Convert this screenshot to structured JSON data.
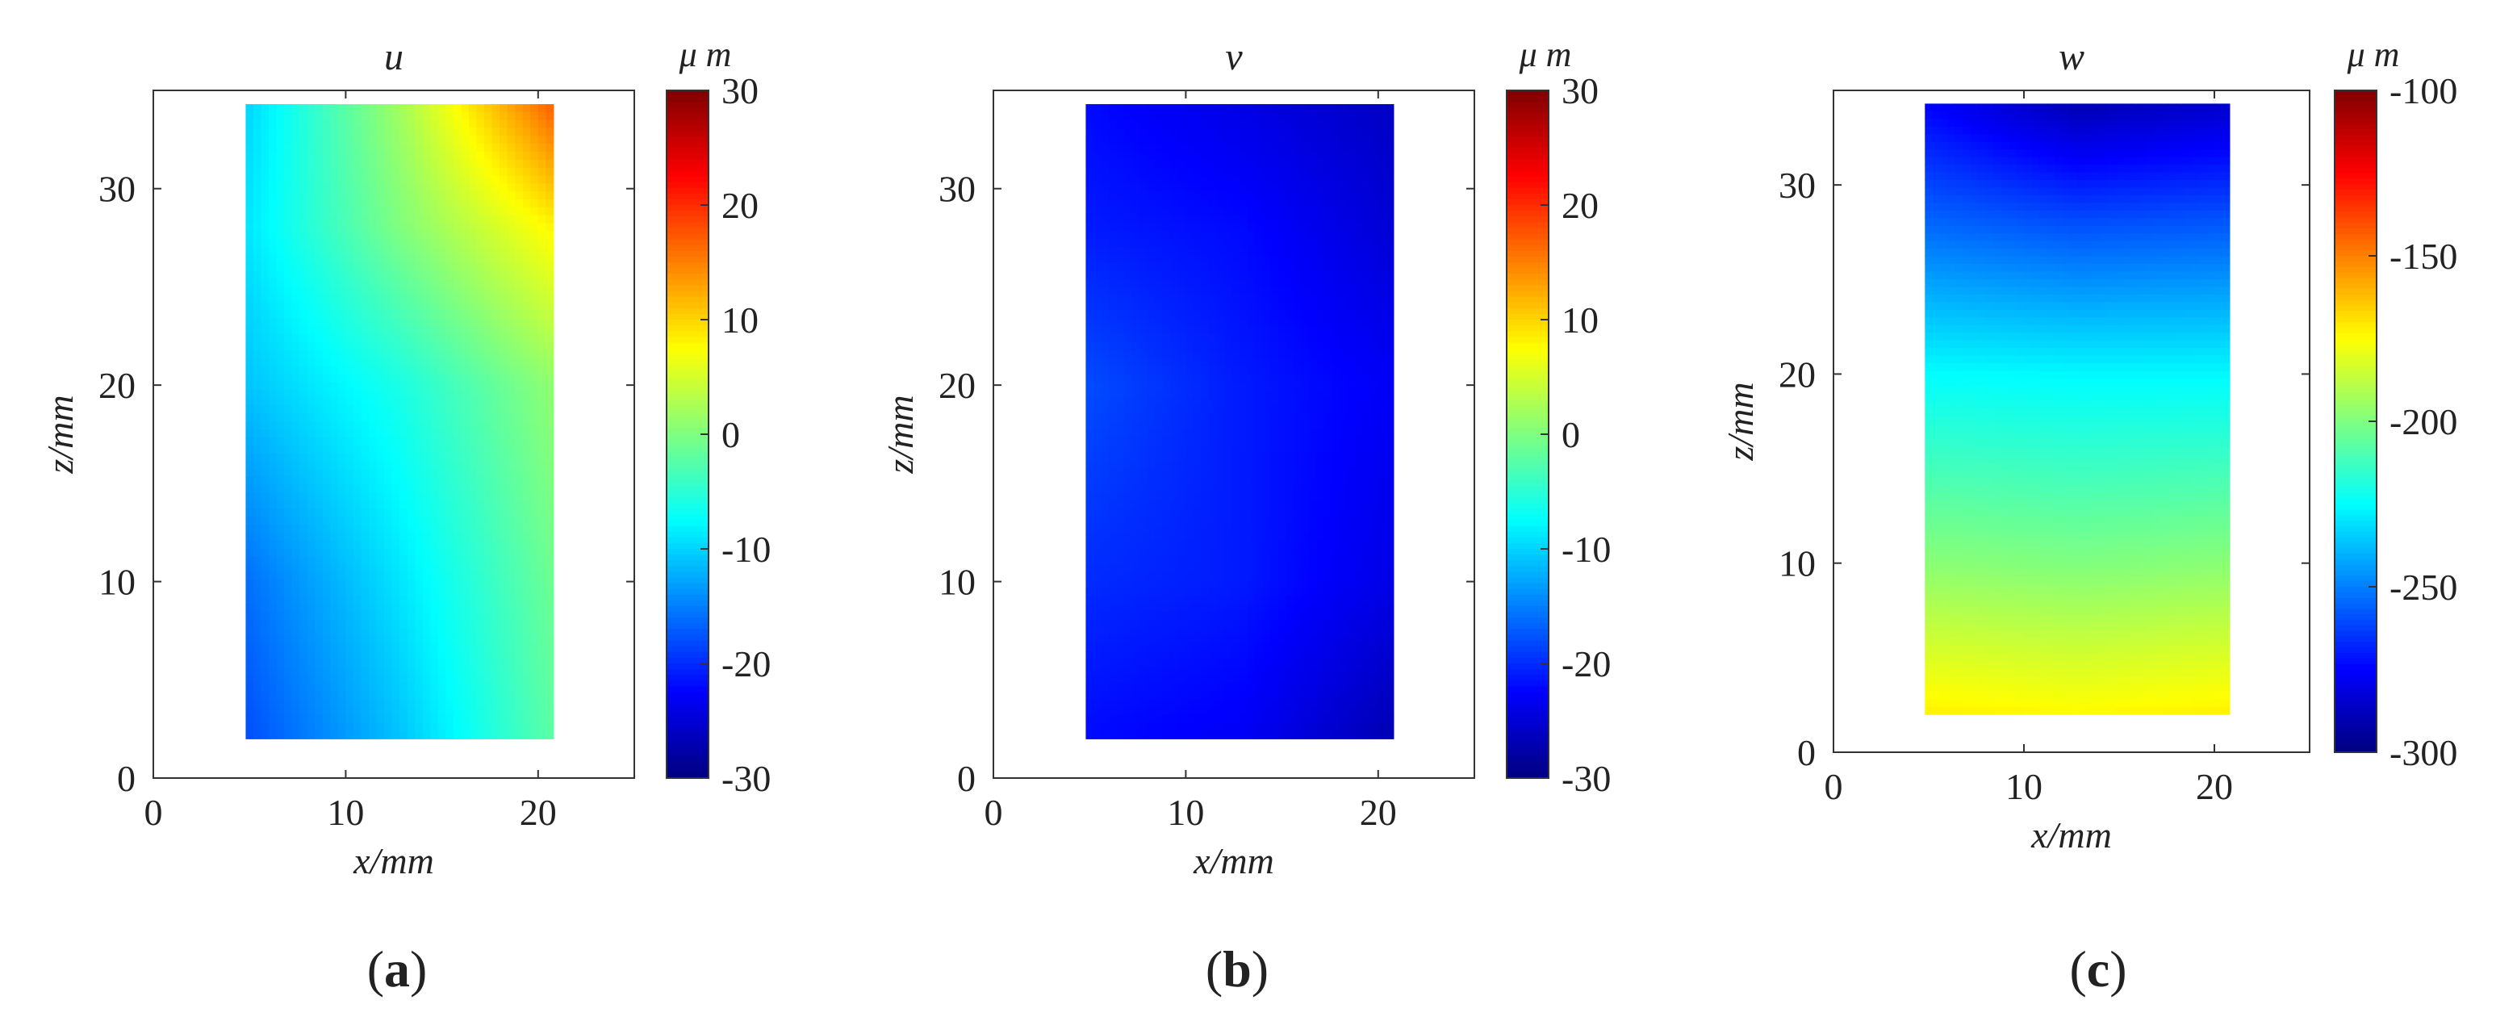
{
  "chart_data": [
    {
      "type": "heatmap",
      "panel_label": "a",
      "title": "u",
      "xlabel": "x/mm",
      "ylabel": "z/mm",
      "xlim": [
        0,
        25
      ],
      "ylim": [
        0,
        35
      ],
      "xticks": [
        0,
        10,
        20
      ],
      "yticks": [
        0,
        10,
        20,
        30
      ],
      "data_extent": {
        "x": [
          4.8,
          20.8
        ],
        "z": [
          2,
          34.3
        ]
      },
      "colorbar": {
        "unit": "μ m",
        "range": [
          -30,
          30
        ],
        "ticks": [
          30,
          20,
          10,
          0,
          -10,
          -20,
          -30
        ],
        "colormap": "jet"
      },
      "x_samples": [
        4.8,
        12.8,
        20.8
      ],
      "z_samples": [
        34.3,
        28,
        20,
        10,
        2
      ],
      "values": [
        [
          -10,
          2,
          17
        ],
        [
          -9,
          0,
          8
        ],
        [
          -11,
          -6,
          1
        ],
        [
          -16,
          -9,
          -1
        ],
        [
          -18,
          -11,
          -2
        ]
      ]
    },
    {
      "type": "heatmap",
      "panel_label": "b",
      "title": "v",
      "xlabel": "x/mm",
      "ylabel": "z/mm",
      "xlim": [
        0,
        25
      ],
      "ylim": [
        0,
        35
      ],
      "xticks": [
        0,
        10,
        20
      ],
      "yticks": [
        0,
        10,
        20,
        30
      ],
      "data_extent": {
        "x": [
          4.8,
          20.8
        ],
        "z": [
          2,
          34.3
        ]
      },
      "colorbar": {
        "unit": "μ m",
        "range": [
          -30,
          30
        ],
        "ticks": [
          30,
          20,
          10,
          0,
          -10,
          -20,
          -30
        ],
        "colormap": "jet"
      },
      "x_samples": [
        4.8,
        12.8,
        20.8
      ],
      "z_samples": [
        34.3,
        28,
        20,
        10,
        2
      ],
      "values": [
        [
          -22,
          -24,
          -26
        ],
        [
          -21,
          -22,
          -25
        ],
        [
          -18,
          -21,
          -23
        ],
        [
          -20,
          -21,
          -24
        ],
        [
          -22,
          -23,
          -27
        ]
      ]
    },
    {
      "type": "heatmap",
      "panel_label": "c",
      "title": "w",
      "xlabel": "x/mm",
      "ylabel": "z/mm",
      "xlim": [
        0,
        25
      ],
      "ylim": [
        0,
        35
      ],
      "xticks": [
        0,
        10,
        20
      ],
      "yticks": [
        0,
        10,
        20,
        30
      ],
      "data_extent": {
        "x": [
          4.8,
          20.8
        ],
        "z": [
          2,
          34.3
        ]
      },
      "colorbar": {
        "unit": "μ m",
        "range": [
          -300,
          -100
        ],
        "ticks": [
          -100,
          -150,
          -200,
          -250,
          -300
        ],
        "colormap": "jet"
      },
      "x_samples": [
        4.8,
        12.8,
        20.8
      ],
      "z_samples": [
        34.3,
        28,
        20,
        10,
        2
      ],
      "values": [
        [
          -275,
          -290,
          -285
        ],
        [
          -255,
          -260,
          -258
        ],
        [
          -225,
          -226,
          -226
        ],
        [
          -198,
          -200,
          -198
        ],
        [
          -172,
          -174,
          -172
        ]
      ]
    }
  ]
}
